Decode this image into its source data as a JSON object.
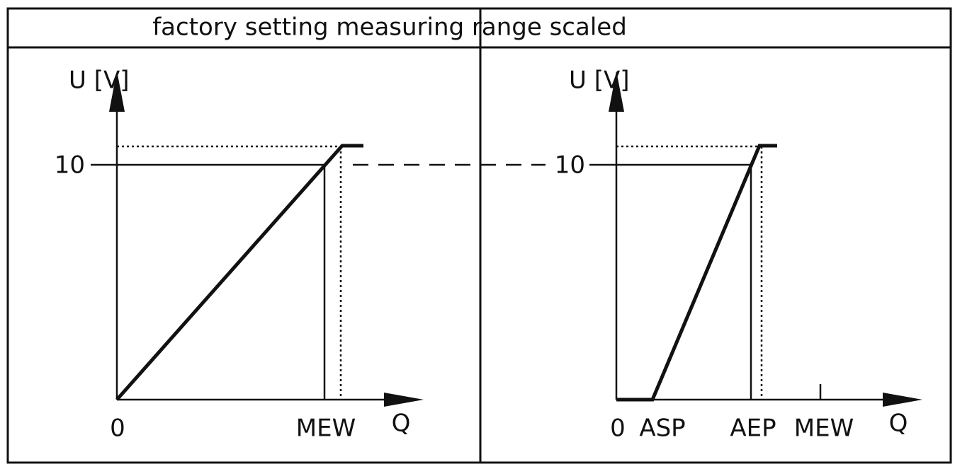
{
  "header": {
    "title": "factory setting measuring range scaled"
  },
  "left_panel": {
    "y_axis_label": "U [V]",
    "y_tick": "10",
    "x_labels": [
      "0",
      "MEW"
    ],
    "x_axis_label": "Q"
  },
  "right_panel": {
    "y_axis_label": "U [V]",
    "y_tick": "10",
    "x_labels": [
      "0",
      "ASP",
      "AEP",
      "MEW"
    ],
    "x_axis_label": "Q"
  }
}
